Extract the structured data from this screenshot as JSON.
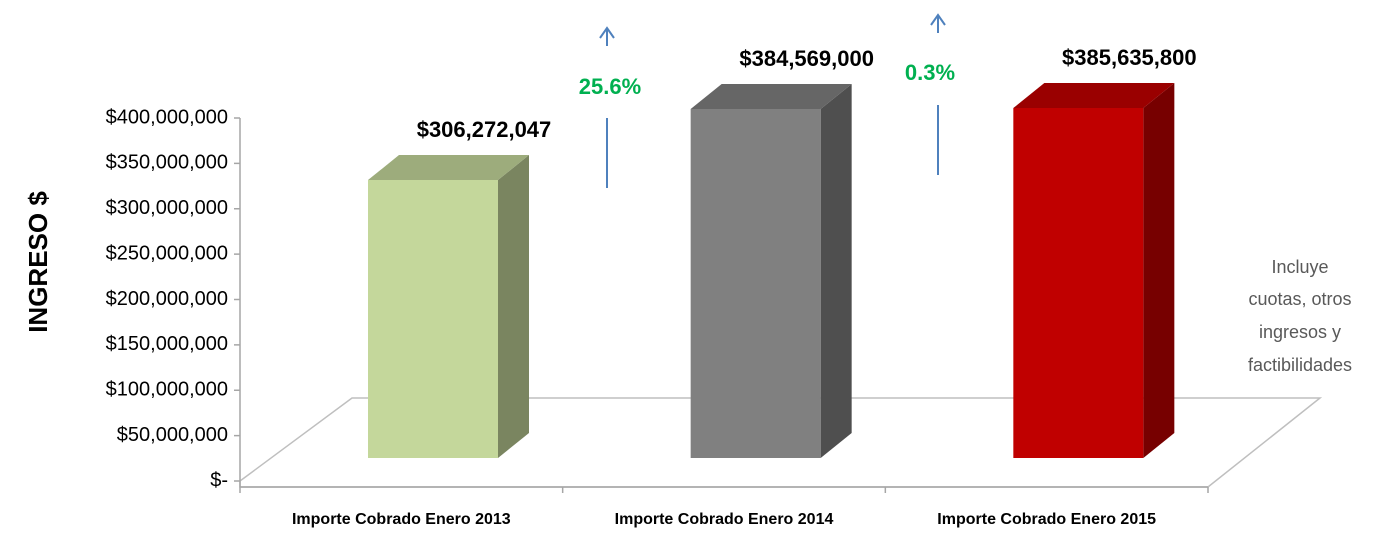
{
  "chart_data": {
    "type": "bar3d",
    "y_label": "INGRESO $",
    "categories": [
      "Importe Cobrado Enero 2013",
      "Importe Cobrado Enero 2014",
      "Importe Cobrado Enero 2015"
    ],
    "values": [
      306272047,
      384569000,
      385635800
    ],
    "value_labels": [
      "$306,272,047",
      "$384,569,000",
      "$385,635,800"
    ],
    "colors": [
      "#c4d79b",
      "#808080",
      "#c00000"
    ],
    "ylim": [
      0,
      400000000
    ],
    "yticks": [
      {
        "value": 0,
        "label": "$-"
      },
      {
        "value": 50000000,
        "label": "$50,000,000"
      },
      {
        "value": 100000000,
        "label": "$100,000,000"
      },
      {
        "value": 150000000,
        "label": "$150,000,000"
      },
      {
        "value": 200000000,
        "label": "$200,000,000"
      },
      {
        "value": 250000000,
        "label": "$250,000,000"
      },
      {
        "value": 300000000,
        "label": "$300,000,000"
      },
      {
        "value": 350000000,
        "label": "$350,000,000"
      },
      {
        "value": 400000000,
        "label": "$400,000,000"
      }
    ],
    "annotations": [
      "25.6%",
      "0.3%"
    ],
    "note": [
      "Incluye",
      "cuotas, otros",
      "ingresos y",
      "factibilidades"
    ]
  }
}
